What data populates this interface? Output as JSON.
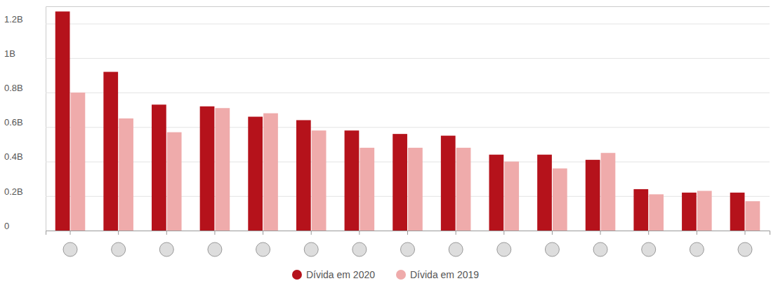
{
  "chart_data": {
    "type": "bar",
    "categories": [
      null,
      null,
      null,
      null,
      null,
      null,
      null,
      null,
      null,
      null,
      null,
      null,
      null,
      null,
      null
    ],
    "series": [
      {
        "name": "Dívida em 2020",
        "color": "#b5121b",
        "values": [
          1.27,
          0.92,
          0.73,
          0.72,
          0.66,
          0.64,
          0.58,
          0.56,
          0.55,
          0.44,
          0.44,
          0.41,
          0.24,
          0.22,
          0.22
        ]
      },
      {
        "name": "Dívida em 2019",
        "color": "#efabab",
        "values": [
          0.8,
          0.65,
          0.57,
          0.71,
          0.68,
          0.58,
          0.48,
          0.48,
          0.48,
          0.4,
          0.36,
          0.45,
          0.21,
          0.23,
          0.17
        ]
      }
    ],
    "ylim": [
      0,
      1.3
    ],
    "yticks": [
      0,
      {
        "value": 0.2,
        "label": "0.2B"
      },
      {
        "value": 0.4,
        "label": "0.4B"
      },
      {
        "value": 0.6,
        "label": "0.6B"
      },
      {
        "value": 0.8,
        "label": "0.8B"
      },
      {
        "value": 1,
        "label": "1B"
      },
      {
        "value": 1.2,
        "label": "1.2B"
      }
    ],
    "grid": true,
    "legend": "bottom"
  }
}
